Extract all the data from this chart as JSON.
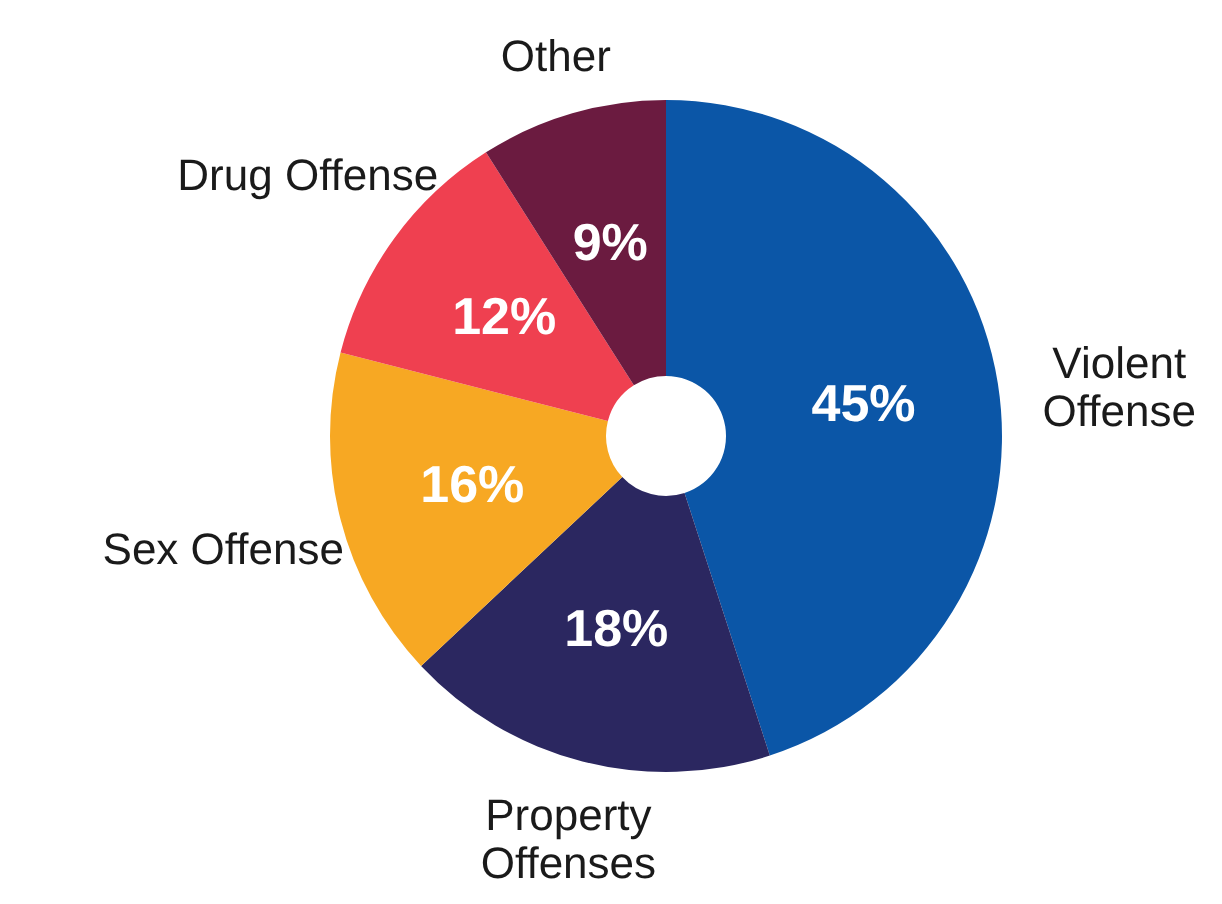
{
  "chart_data": {
    "type": "donut",
    "categories": [
      "Violent\nOffense",
      "Property\nOffenses",
      "Sex Offense",
      "Drug Offense",
      "Other"
    ],
    "values": [
      45,
      18,
      16,
      12,
      9
    ],
    "colors": [
      "#0b56a7",
      "#2b2760",
      "#f7a823",
      "#ef4050",
      "#6b1b40"
    ],
    "value_labels": [
      "45%",
      "18%",
      "16%",
      "12%",
      "9%"
    ]
  }
}
